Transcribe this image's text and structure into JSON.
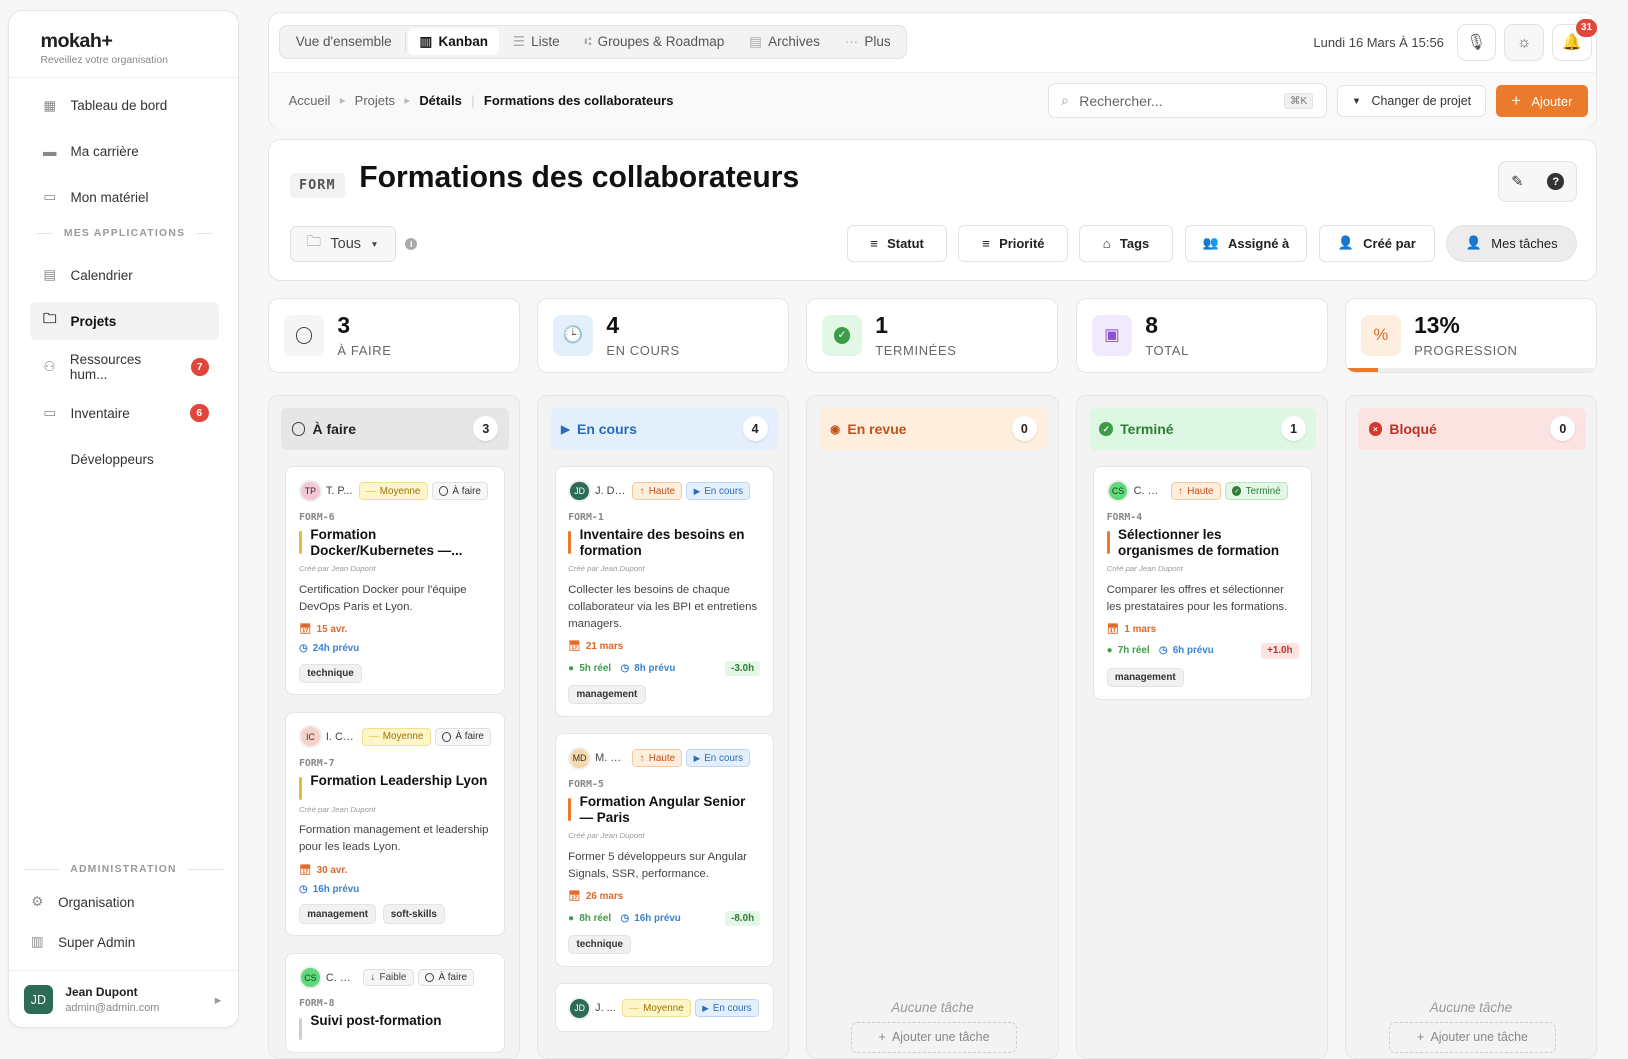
{
  "sidebar": {
    "logo": "mokah+",
    "tagline": "Reveillez votre organisation",
    "top_items": [
      {
        "label": "Tableau de bord",
        "icon": "grid-icon"
      },
      {
        "label": "Ma carrière",
        "icon": "book-icon"
      },
      {
        "label": "Mon matériel",
        "icon": "laptop-icon"
      }
    ],
    "apps_section": "MES APPLICATIONS",
    "app_items": [
      {
        "label": "Calendrier",
        "icon": "calendar-icon"
      },
      {
        "label": "Projets",
        "icon": "folder-icon",
        "active": true
      },
      {
        "label": "Ressources hum...",
        "icon": "people-icon",
        "badge": "7"
      },
      {
        "label": "Inventaire",
        "icon": "monitor-icon",
        "badge": "6"
      },
      {
        "label": "Développeurs",
        "icon": "code-icon"
      }
    ],
    "admin_section": "ADMINISTRATION",
    "admin_items": [
      {
        "label": "Organisation",
        "icon": "gear-icon"
      },
      {
        "label": "Super Admin",
        "icon": "building-icon"
      }
    ],
    "user": {
      "initials": "JD",
      "name": "Jean Dupont",
      "email": "admin@admin.com"
    }
  },
  "header": {
    "tabs": [
      {
        "label": "Vue d'ensemble"
      },
      {
        "label": "Kanban",
        "active": true
      },
      {
        "label": "Liste"
      },
      {
        "label": "Groupes & Roadmap"
      },
      {
        "label": "Archives"
      },
      {
        "label": "Plus"
      }
    ],
    "datetime": "Lundi 16 Mars À 15:56",
    "notifications": "31",
    "breadcrumb": [
      "Accueil",
      "Projets",
      "Détails",
      "Formations des collaborateurs"
    ],
    "search_placeholder": "Rechercher...",
    "search_shortcut": "⌘K",
    "change_project": "Changer de projet",
    "add": "Ajouter"
  },
  "project": {
    "code": "FORM",
    "title": "Formations des collaborateurs",
    "filter_folder": "Tous",
    "filters": [
      "Statut",
      "Priorité",
      "Tags",
      "Assigné à",
      "Créé par",
      "Mes tâches"
    ]
  },
  "stats": [
    {
      "value": "3",
      "label": "À FAIRE"
    },
    {
      "value": "4",
      "label": "EN COURS"
    },
    {
      "value": "1",
      "label": "TERMINÉES"
    },
    {
      "value": "8",
      "label": "TOTAL"
    },
    {
      "value": "13%",
      "label": "PROGRESSION",
      "progress": 13
    }
  ],
  "colors": {
    "accent": "#ea7a2c",
    "todo": "#e6e6e6",
    "inprogress": "#e3effb",
    "review": "#fdeedd",
    "done": "#def7e2",
    "blocked": "#fbe3e1"
  },
  "columns": [
    {
      "title": "À faire",
      "count": "3",
      "cards": [
        {
          "initials": "TP",
          "av_bg": "#f4c6d6",
          "av_fg": "#333",
          "assignee": "T. P...",
          "priority": "Moyenne",
          "prio": "med",
          "status": "À faire",
          "st": "todo",
          "key": "FORM-6",
          "title": "Formation Docker/Kubernetes —...",
          "bar": "#e8b93a",
          "created_by": "Créé par Jean Dupont",
          "desc": "Certification Docker pour l'équipe DevOps Paris et Lyon.",
          "due": "15 avr.",
          "planned": "24h prévu",
          "stacked": true,
          "tags": [
            "technique"
          ]
        },
        {
          "initials": "IC",
          "av_bg": "#f6d2c8",
          "av_fg": "#333",
          "assignee": "I. Ch...",
          "priority": "Moyenne",
          "prio": "med",
          "status": "À faire",
          "st": "todo",
          "key": "FORM-7",
          "title": "Formation Leadership Lyon",
          "bar": "#e8b93a",
          "created_by": "Créé par Jean Dupont",
          "desc": "Formation management et leadership pour les leads Lyon.",
          "due": "30 avr.",
          "planned": "16h prévu",
          "stacked": true,
          "tags": [
            "management",
            "soft-skills"
          ]
        },
        {
          "initials": "CS",
          "av_bg": "#5fd97a",
          "av_fg": "#1b3b22",
          "assignee": "C. Sim...",
          "priority": "Faible",
          "prio": "low",
          "status": "À faire",
          "st": "todo",
          "key": "FORM-8",
          "title": "Suivi post-formation",
          "bar": "#cfcfcf",
          "tags": []
        }
      ]
    },
    {
      "title": "En cours",
      "count": "4",
      "cards": [
        {
          "initials": "JD",
          "av_bg": "#2c6b57",
          "av_fg": "#fff",
          "assignee": "J. Du...",
          "priority": "Haute",
          "prio": "high",
          "status": "En cours",
          "st": "prog",
          "key": "FORM-1",
          "title": "Inventaire des besoins en formation",
          "bar": "#ea7a2c",
          "created_by": "Créé par Jean Dupont",
          "desc": "Collecter les besoins de chaque collaborateur via les BPI et entretiens managers.",
          "due": "21 mars",
          "actual": "5h réel",
          "planned": "8h prévu",
          "delta": "-3.0h",
          "delta_kind": "good",
          "tags": [
            "management"
          ]
        },
        {
          "initials": "MD",
          "av_bg": "#f5d9a8",
          "av_fg": "#333",
          "assignee": "M. D...",
          "priority": "Haute",
          "prio": "high",
          "status": "En cours",
          "st": "prog",
          "key": "FORM-5",
          "title": "Formation Angular Senior — Paris",
          "bar": "#ea7a2c",
          "created_by": "Créé par Jean Dupont",
          "desc": "Former 5 développeurs sur Angular Signals, SSR, performance.",
          "due": "26 mars",
          "actual": "8h réel",
          "planned": "16h prévu",
          "delta": "-8.0h",
          "delta_kind": "good",
          "tags": [
            "technique"
          ]
        },
        {
          "initials": "JD",
          "av_bg": "#2c6b57",
          "av_fg": "#fff",
          "assignee": "J. ...",
          "priority": "Moyenne",
          "prio": "med",
          "status": "En cours",
          "st": "prog",
          "tags": []
        }
      ]
    },
    {
      "title": "En revue",
      "count": "0",
      "empty": "Aucune tâche",
      "add": "Ajouter une tâche",
      "cards": []
    },
    {
      "title": "Terminé",
      "count": "1",
      "cards": [
        {
          "initials": "CS",
          "av_bg": "#5fd97a",
          "av_fg": "#1b3b22",
          "assignee": "C. Si...",
          "priority": "Haute",
          "prio": "high",
          "status": "Terminé",
          "st": "done",
          "key": "FORM-4",
          "title": "Sélectionner les organismes de formation",
          "bar": "#ea7a2c",
          "created_by": "Créé par Jean Dupont",
          "desc": "Comparer les offres et sélectionner les prestataires pour les formations.",
          "due": "1 mars",
          "actual": "7h réel",
          "planned": "6h prévu",
          "delta": "+1.0h",
          "delta_kind": "bad",
          "tags": [
            "management"
          ]
        }
      ]
    },
    {
      "title": "Bloqué",
      "count": "0",
      "empty": "Aucune tâche",
      "add": "Ajouter une tâche",
      "cards": []
    }
  ]
}
